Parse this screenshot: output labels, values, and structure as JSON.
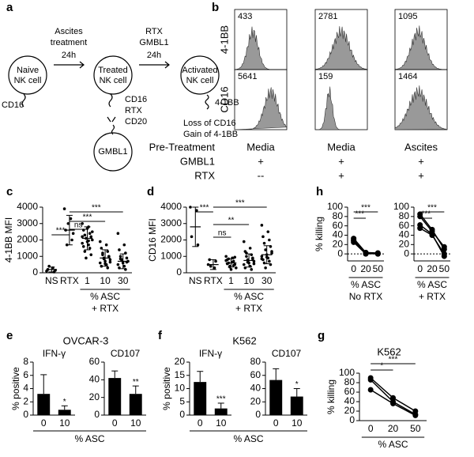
{
  "panel_labels": [
    "a",
    "b",
    "c",
    "d",
    "e",
    "f",
    "g",
    "h"
  ],
  "diagram": {
    "nodes": [
      {
        "lines": [
          "Naive",
          "NK cell"
        ]
      },
      {
        "lines": [
          "Treated",
          "NK cell"
        ]
      },
      {
        "lines": [
          "Activated",
          "NK cell"
        ]
      },
      {
        "lines": [
          "GMBL1"
        ]
      }
    ],
    "arrows": [
      {
        "lines": [
          "Ascites",
          "treatment",
          "24h"
        ]
      },
      {
        "lines": [
          "RTX",
          "GMBL1",
          "24h"
        ]
      }
    ],
    "labels": [
      "CD16",
      "CD16",
      "RTX",
      "CD20",
      "4-1BB",
      "Loss of CD16",
      "Gain of 4-1BB"
    ]
  },
  "flow": {
    "rows": [
      {
        "name": "4-1BB",
        "mfi": [
          433,
          2781,
          1095
        ]
      },
      {
        "name": "CD16",
        "mfi": [
          5641,
          159,
          1464
        ]
      }
    ],
    "conditions": [
      {
        "name": "Pre-Treatment",
        "values": [
          "Media",
          "Media",
          "Ascites"
        ]
      },
      {
        "name": "GMBL1",
        "values": [
          "+",
          "+",
          "+"
        ]
      },
      {
        "name": "RTX",
        "values": [
          "--",
          "+",
          "+"
        ]
      }
    ]
  },
  "chart_data": [
    {
      "type": "dot",
      "ylabel": "4-1BB MFI",
      "categories": [
        "NS",
        "RTX",
        "1",
        "10",
        "30"
      ],
      "values": [
        200,
        2600,
        2100,
        900,
        700
      ],
      "errors": [
        150,
        900,
        700,
        500,
        450
      ],
      "points": [
        [
          100,
          300,
          200,
          50,
          400,
          150
        ],
        [
          3900,
          3300,
          2600,
          2000,
          1700,
          2400,
          3000
        ],
        [
          3000,
          2800,
          2600,
          2400,
          2300,
          2200,
          2100,
          2000,
          1900,
          1800,
          1700,
          1600,
          1500,
          1300,
          1100,
          900,
          2500,
          2700,
          2200,
          1950
        ],
        [
          1900,
          1700,
          1500,
          1300,
          1100,
          1000,
          900,
          800,
          700,
          600,
          500,
          400,
          300,
          1200,
          1000,
          850,
          650,
          550
        ],
        [
          2400,
          1700,
          1400,
          1200,
          1000,
          900,
          800,
          700,
          600,
          500,
          400,
          300,
          200,
          850,
          650,
          750
        ]
      ],
      "color": "#000000",
      "ylim": [
        0,
        4000
      ],
      "yticks": [
        0,
        1000,
        2000,
        3000,
        4000
      ],
      "significance": [
        "***",
        "ns",
        "***",
        "***"
      ],
      "xgroup": [
        "% ASC",
        "+ RTX"
      ]
    },
    {
      "type": "dot",
      "ylabel": "CD16 MFI",
      "categories": [
        "NS",
        "RTX",
        "1",
        "10",
        "30"
      ],
      "values": [
        2800,
        500,
        600,
        750,
        1100
      ],
      "errors": [
        1200,
        300,
        250,
        400,
        550
      ],
      "points": [
        [
          4000,
          3800,
          2200,
          1700
        ],
        [
          500,
          300,
          800,
          700,
          400
        ],
        [
          1000,
          900,
          800,
          700,
          600,
          500,
          400,
          300,
          200,
          750,
          650,
          550,
          450,
          850,
          950,
          350
        ],
        [
          1900,
          1500,
          1300,
          1100,
          1000,
          900,
          800,
          700,
          600,
          500,
          400,
          300,
          200,
          1200,
          850,
          650,
          550
        ],
        [
          2900,
          2500,
          2200,
          2000,
          1800,
          1600,
          1400,
          1200,
          1100,
          1000,
          900,
          800,
          700,
          600,
          500,
          300,
          1300,
          950,
          850
        ]
      ],
      "color": "#000000",
      "ylim": [
        0,
        4000
      ],
      "yticks": [
        0,
        1000,
        2000,
        3000,
        4000
      ],
      "significance": [
        "***",
        "ns",
        "**",
        "***"
      ],
      "xgroup": [
        "% ASC",
        "+ RTX"
      ]
    },
    {
      "type": "line",
      "ylabel": "% killing",
      "categories": [
        "0",
        "20",
        "50"
      ],
      "series": [
        {
          "color": "#000000",
          "values": [
            30,
            1,
            0
          ]
        },
        {
          "color": "#000000",
          "values": [
            33,
            3,
            2
          ]
        },
        {
          "color": "#000000",
          "values": [
            25,
            0,
            1
          ]
        },
        {
          "color": "#000000",
          "values": [
            28,
            2,
            0
          ]
        }
      ],
      "ylim": [
        -15,
        100
      ],
      "yticks": [
        0,
        20,
        40,
        60,
        80,
        100
      ],
      "zero_line": true,
      "significance": [
        "***",
        "***"
      ],
      "xgroup": [
        "% ASC",
        "No RTX"
      ]
    },
    {
      "type": "line",
      "categories": [
        "0",
        "20",
        "50"
      ],
      "series": [
        {
          "color": "#000000",
          "values": [
            85,
            52,
            10
          ]
        },
        {
          "color": "#000000",
          "values": [
            80,
            48,
            15
          ]
        },
        {
          "color": "#000000",
          "values": [
            62,
            42,
            -5
          ]
        },
        {
          "color": "#000000",
          "values": [
            55,
            40,
            0
          ]
        }
      ],
      "ylim": [
        -15,
        100
      ],
      "yticks": [
        0,
        20,
        40,
        60,
        80,
        100
      ],
      "zero_line": true,
      "significance": [
        "***",
        "***"
      ],
      "xgroup": [
        "% ASC",
        "+ RTX"
      ]
    },
    {
      "type": "bar",
      "group_title": "OVCAR-3",
      "title": "IFN-γ",
      "ylabel": "% positive",
      "categories": [
        "0",
        "10"
      ],
      "values": [
        3.2,
        0.8
      ],
      "errors": [
        2.9,
        0.6
      ],
      "color": "#000000",
      "ylim": [
        0,
        8
      ],
      "yticks": [
        0,
        2,
        4,
        6,
        8
      ],
      "significance": [
        "*"
      ],
      "xlabel": "% ASC"
    },
    {
      "type": "bar",
      "title": "CD107",
      "categories": [
        "0",
        "10"
      ],
      "values": [
        42,
        24
      ],
      "errors": [
        8,
        9
      ],
      "color": "#000000",
      "ylim": [
        0,
        60
      ],
      "yticks": [
        0,
        20,
        40,
        60
      ],
      "significance": [
        "**"
      ]
    },
    {
      "type": "bar",
      "group_title": "K562",
      "title": "IFN-γ",
      "ylabel": "% positive",
      "categories": [
        "0",
        "10"
      ],
      "values": [
        12.5,
        2.5
      ],
      "errors": [
        4,
        2
      ],
      "color": "#000000",
      "ylim": [
        0,
        20
      ],
      "yticks": [
        0,
        5,
        10,
        15,
        20
      ],
      "significance": [
        "***"
      ],
      "xlabel": "% ASC"
    },
    {
      "type": "bar",
      "title": "CD107",
      "categories": [
        "0",
        "10"
      ],
      "values": [
        53,
        28
      ],
      "errors": [
        17,
        12
      ],
      "color": "#000000",
      "ylim": [
        0,
        80
      ],
      "yticks": [
        0,
        20,
        40,
        60,
        80
      ],
      "significance": [
        "*"
      ]
    },
    {
      "type": "line",
      "group_title": "K562",
      "ylabel": "% killing",
      "categories": [
        "0",
        "20",
        "50"
      ],
      "series": [
        {
          "color": "#000000",
          "values": [
            90,
            48,
            20
          ]
        },
        {
          "color": "#000000",
          "values": [
            86,
            40,
            13
          ]
        },
        {
          "color": "#000000",
          "values": [
            65,
            36,
            11
          ]
        }
      ],
      "ylim": [
        0,
        100
      ],
      "yticks": [
        0,
        20,
        40,
        60,
        80,
        100
      ],
      "significance": [
        "*",
        "***"
      ],
      "xgroup": [
        "% ASC"
      ]
    }
  ]
}
